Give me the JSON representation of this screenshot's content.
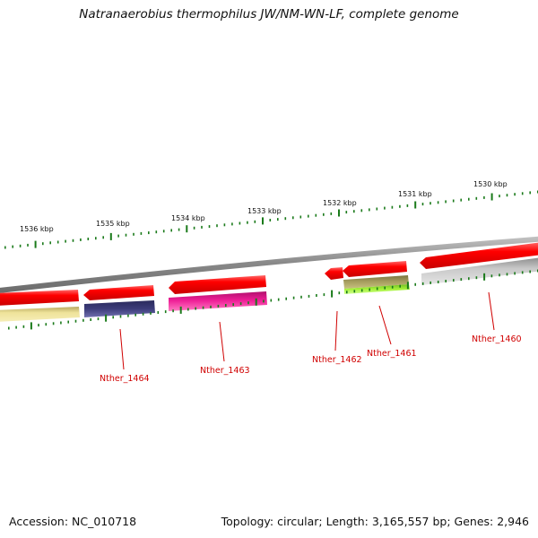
{
  "title": "Natranaerobius thermophilus JW/NM-WN-LF, complete genome",
  "footer": {
    "accession": "Accession: NC_010718",
    "topology": "Topology: circular; Length: 3,165,557 bp; Genes: 2,946"
  },
  "kbp_ticks": [
    {
      "label": "1536 kbp"
    },
    {
      "label": "1535 kbp"
    },
    {
      "label": "1534 kbp"
    },
    {
      "label": "1533 kbp"
    },
    {
      "label": "1532 kbp"
    },
    {
      "label": "1531 kbp"
    },
    {
      "label": "1530 kbp"
    }
  ],
  "gene_labels": [
    {
      "text": "Nther_1464"
    },
    {
      "text": "Nther_1463"
    },
    {
      "text": "Nther_1462"
    },
    {
      "text": "Nther_1461"
    },
    {
      "text": "Nther_1460"
    }
  ],
  "colors": {
    "gene_red": "#ff0000",
    "tick_green": "#1a7a1a",
    "backbone_gray": "#8a8a8a",
    "label_red": "#d00000",
    "cog_yellow": "#efe39a",
    "cog_indigo": "#3c3c7a",
    "cog_magenta": "#ee1e96",
    "cog_olive": "#a8a060",
    "cog_lime": "#a6f23c",
    "cog_lightgray": "#c8c8c8"
  }
}
